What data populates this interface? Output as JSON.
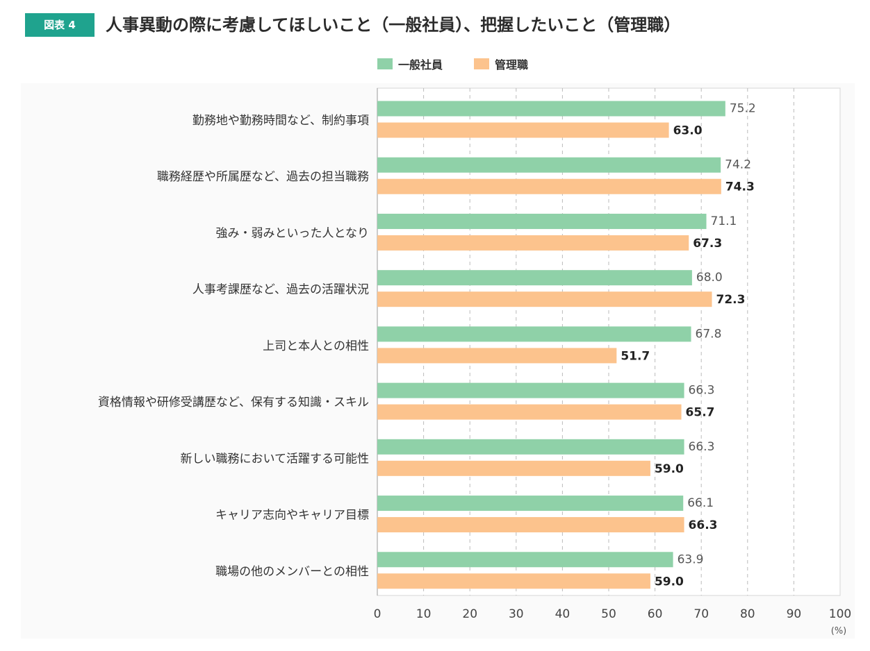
{
  "header": {
    "badge": "図表 4",
    "title": "人事異動の際に考慮してほしいこと（一般社員）、把握したいこと（管理職）"
  },
  "colors": {
    "badge": "#1fa38e",
    "general": "#8fd1a8",
    "manager": "#fcc38d",
    "grid": "#bbbbbb",
    "axis": "#999999"
  },
  "chart_data": {
    "type": "bar",
    "orientation": "horizontal",
    "title": "人事異動の際に考慮してほしいこと（一般社員）、把握したいこと（管理職）",
    "xlabel": "(%)",
    "ylabel": "",
    "xlim": [
      0,
      100
    ],
    "xticks": [
      "0",
      "10",
      "20",
      "30",
      "40",
      "50",
      "60",
      "70",
      "80",
      "90",
      "100"
    ],
    "grid": true,
    "legend_position": "top-center",
    "categories": [
      "勤務地や勤務時間など、制約事項",
      "職務経歴や所属歴など、過去の担当職務",
      "強み・弱みといった人となり",
      "人事考課歴など、過去の活躍状況",
      "上司と本人との相性",
      "資格情報や研修受講歴など、保有する知識・スキル",
      "新しい職務において活躍する可能性",
      "キャリア志向やキャリア目標",
      "職場の他のメンバーとの相性"
    ],
    "series": [
      {
        "name": "一般社員",
        "values": [
          75.2,
          74.2,
          71.1,
          68.0,
          67.8,
          66.3,
          66.3,
          66.1,
          63.9
        ],
        "labels": [
          "75.2",
          "74.2",
          "71.1",
          "68.0",
          "67.8",
          "66.3",
          "66.3",
          "66.1",
          "63.9"
        ]
      },
      {
        "name": "管理職",
        "values": [
          63.0,
          74.3,
          67.3,
          72.3,
          51.7,
          65.7,
          59.0,
          66.3,
          59.0
        ],
        "labels": [
          "63.0",
          "74.3",
          "67.3",
          "72.3",
          "51.7",
          "65.7",
          "59.0",
          "66.3",
          "59.0"
        ]
      }
    ]
  }
}
